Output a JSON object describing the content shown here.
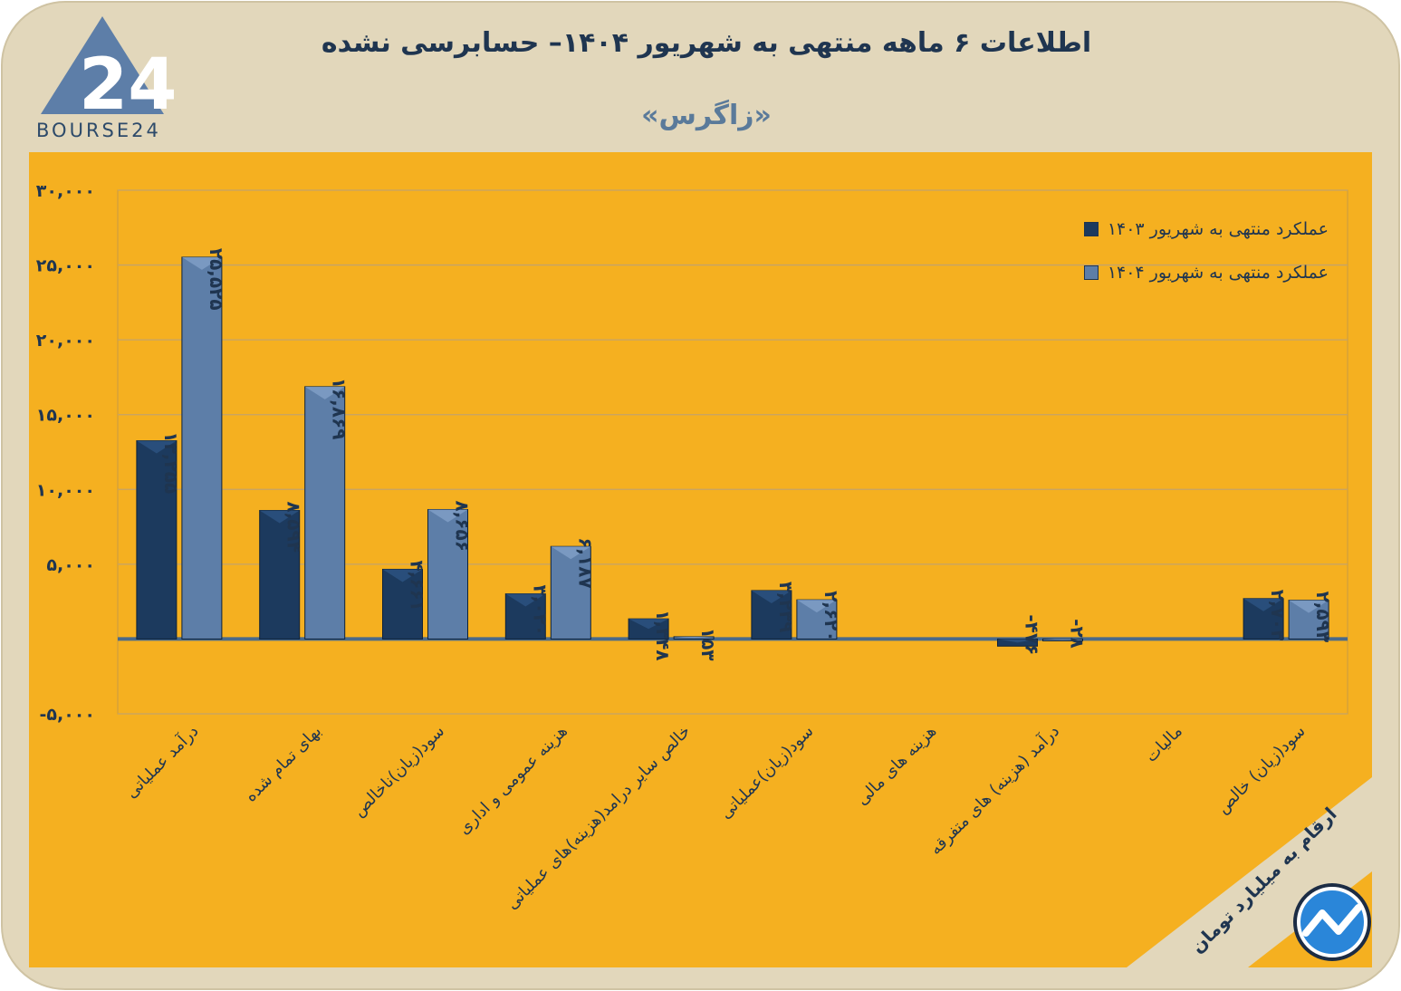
{
  "header": {
    "title": "اطلاعات ۶ ماهه منتهی به شهریور ۱۴۰۴– حسابرسی نشده",
    "subtitle": "«زاگرس»",
    "logo_text": "BOURSE24"
  },
  "units_note": "ارقام به میلیارد تومان",
  "colors": {
    "background_frame": "#e2d7bb",
    "plot_bg": "#f5b020",
    "series_1403": "#1c3a5e",
    "series_1404": "#5d7ea8",
    "zero_line": "#4a6a8a"
  },
  "chart_data": {
    "type": "bar",
    "categories": [
      "درآمد عملیاتی",
      "بهای تمام شده",
      "سود(زیان)ناخالص",
      "هزینه عمومی و اداری",
      "خالص سایر درامد(هزینه)های عملیاتی",
      "سود(زیان)عملیاتی",
      "هزینه های مالی",
      "درآمد (هزینه) های متفرقه",
      "مالیات",
      "سود(زیان) خالص"
    ],
    "series": [
      {
        "name": "عملکرد منتهی به شهریور ۱۴۰۳",
        "values": [
          13255,
          8594,
          4661,
          3020,
          1348,
          3239,
          null,
          -476,
          null,
          2703
        ],
        "labels": [
          "۱۳,۲۵۵",
          "۸,۵۹۴",
          "۴,۶۶۱",
          "۳,۰۲۰",
          "۱,۳۴۸",
          "۳,۲۳۹",
          "",
          "-۴۷۶",
          "",
          "۲,۷۰۳"
        ]
      },
      {
        "name": "عملکرد منتهی به شهریور ۱۴۰۴",
        "values": [
          25525,
          16869,
          8656,
          6187,
          153,
          2620,
          null,
          -28,
          null,
          2593
        ],
        "labels": [
          "۲۵,۵۲۵",
          "۱۶,۸۶۹",
          "۸,۶۵۶",
          "۶,۱۸۷",
          "۱۵۳",
          "۲,۶۲۰",
          "",
          "-۲۸",
          "",
          "۲,۵۹۳"
        ]
      }
    ],
    "ylim": [
      -5000,
      30000
    ],
    "yticks": [
      -5000,
      0,
      5000,
      10000,
      15000,
      20000,
      25000,
      30000
    ],
    "ytick_labels": [
      "-۵,۰۰۰",
      "",
      "۵,۰۰۰",
      "۱۰,۰۰۰",
      "۱۵,۰۰۰",
      "۲۰,۰۰۰",
      "۲۵,۰۰۰",
      "۳۰,۰۰۰"
    ],
    "grid": true,
    "legend_position": "top-right"
  }
}
